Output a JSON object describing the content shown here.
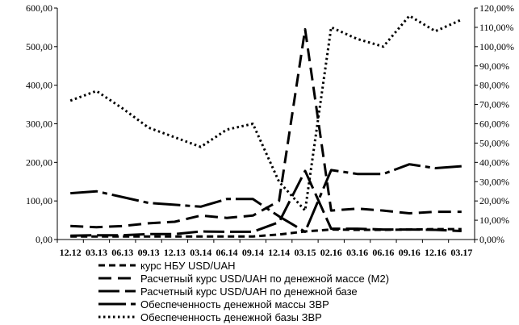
{
  "chart_data": {
    "type": "line",
    "title": "",
    "xlabel": "",
    "ylabel": "",
    "categories": [
      "12.12",
      "03.13",
      "06.13",
      "09.13",
      "12.13",
      "03.14",
      "06.14",
      "09.14",
      "12.14",
      "03.15",
      "02.16",
      "03.16",
      "06.16",
      "09.16",
      "12.16",
      "03.17"
    ],
    "y_left": {
      "ylim": [
        0,
        600
      ],
      "ticks": [
        "0,00",
        "100,00",
        "200,00",
        "300,00",
        "400,00",
        "500,00",
        "600,00"
      ]
    },
    "y_right": {
      "ylim": [
        0,
        120
      ],
      "ticks": [
        "0,00%",
        "10,00%",
        "20,00%",
        "30,00%",
        "40,00%",
        "50,00%",
        "60,00%",
        "70,00%",
        "80,00%",
        "90,00%",
        "100,00%",
        "110,00%",
        "120,00%"
      ]
    },
    "grid": false,
    "legend_position": "bottom",
    "series": [
      {
        "name": "курс НБУ USD/UAH",
        "axis": "left",
        "dash": "8,5",
        "width": 3,
        "values": [
          8,
          8,
          8,
          8,
          8,
          8,
          8,
          8,
          13,
          21,
          26,
          25,
          25,
          26,
          27,
          27
        ]
      },
      {
        "name": "Расчетный курс USD/UAH по денежной массе (M2)",
        "axis": "left",
        "dash": "16,8",
        "width": 3,
        "values": [
          35,
          32,
          35,
          42,
          46,
          62,
          56,
          62,
          100,
          545,
          75,
          80,
          75,
          68,
          72,
          72
        ]
      },
      {
        "name": "Расчетный курс USD/UAH по денежной базе",
        "axis": "left",
        "dash": "26,7",
        "width": 3,
        "values": [
          10,
          11,
          11,
          14,
          14,
          21,
          20,
          20,
          45,
          178,
          28,
          28,
          26,
          26,
          25,
          22
        ]
      },
      {
        "name": "Обеспеченность денежной массы ЗВР",
        "axis": "right",
        "dash": "34,6,6,6",
        "width": 3,
        "values": [
          24,
          25,
          22,
          19,
          18,
          17,
          21,
          21,
          12,
          4,
          36,
          34,
          34,
          39,
          37,
          38
        ]
      },
      {
        "name": "Обеспеченность денежной базы ЗВР",
        "axis": "right",
        "dash": "2.5,3.5",
        "width": 3,
        "values": [
          72,
          77,
          68,
          58,
          53,
          48,
          57,
          60,
          30,
          15,
          110,
          104,
          100,
          116,
          108,
          114
        ]
      }
    ]
  }
}
